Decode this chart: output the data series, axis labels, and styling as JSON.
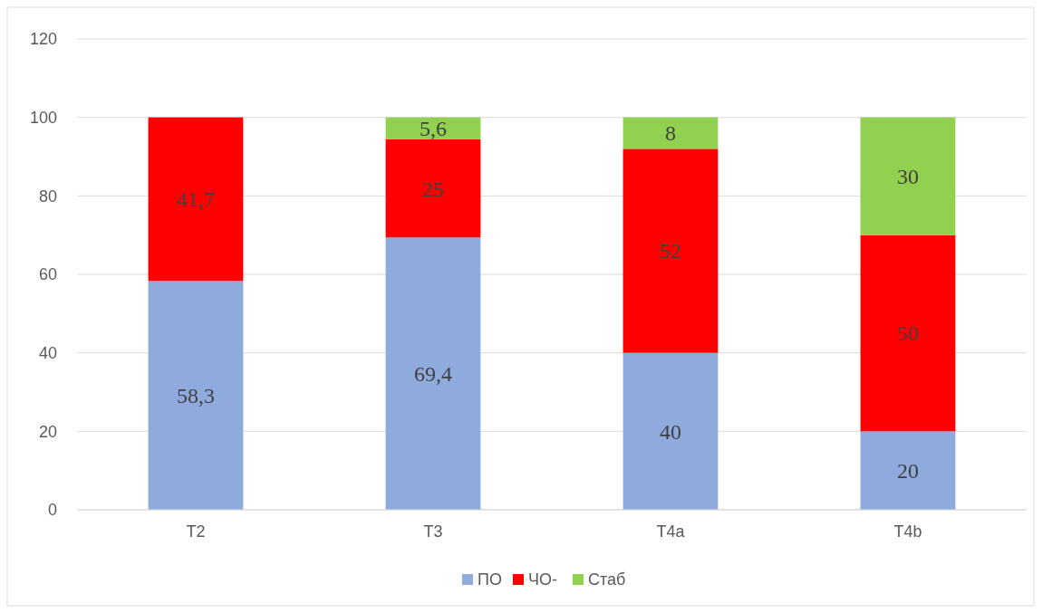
{
  "chart_data": {
    "type": "bar",
    "stacked": true,
    "categories": [
      "T2",
      "T3",
      "T4a",
      "T4b"
    ],
    "series": [
      {
        "name": "ПО",
        "color": "#8faadc",
        "values": [
          58.3,
          69.4,
          40,
          20
        ],
        "value_labels": [
          "58,3",
          "69,4",
          "40",
          "20"
        ]
      },
      {
        "name": "ЧО-",
        "color": "#ff0000",
        "values": [
          41.7,
          25,
          52,
          50
        ],
        "value_labels": [
          "41,7",
          "25",
          "52",
          "50"
        ]
      },
      {
        "name": "Стаб",
        "color": "#92d050",
        "values": [
          null,
          5.6,
          8,
          30
        ],
        "value_labels": [
          null,
          "5,6",
          "8",
          "30"
        ]
      }
    ],
    "ylim": [
      0,
      120
    ],
    "yticks": [
      0,
      20,
      40,
      60,
      80,
      100,
      120
    ],
    "grid": "y",
    "legend": "bottom"
  }
}
